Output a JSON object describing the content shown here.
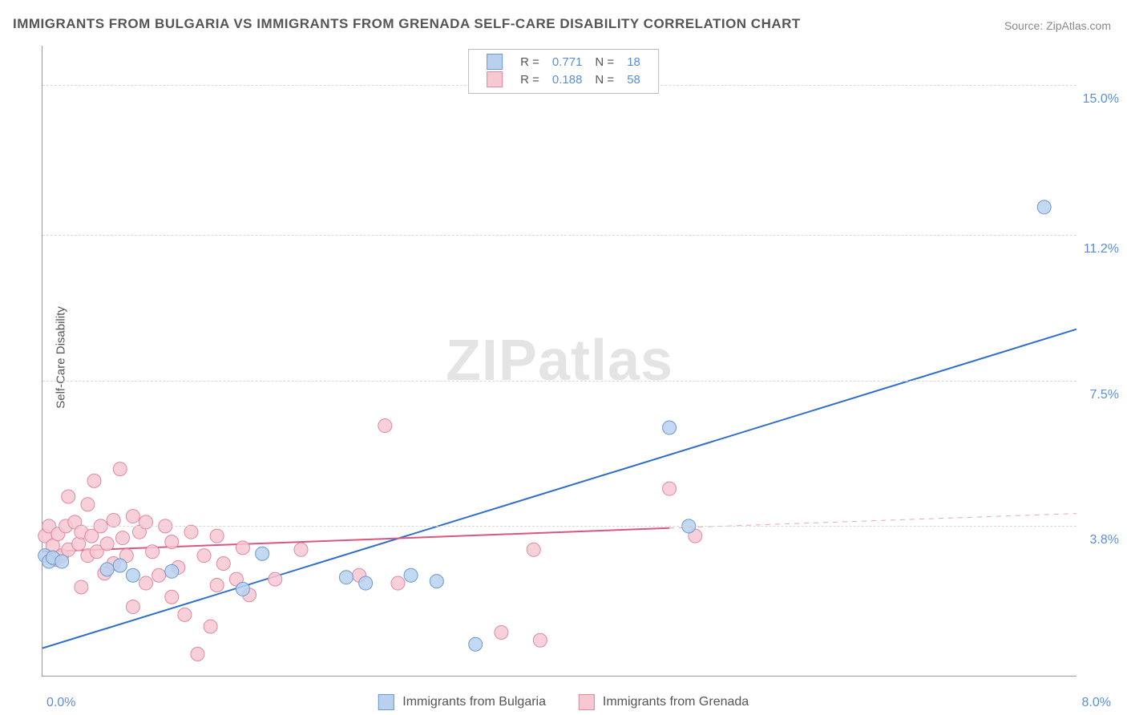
{
  "chart": {
    "type": "scatter-correlation",
    "title": "IMMIGRANTS FROM BULGARIA VS IMMIGRANTS FROM GRENADA SELF-CARE DISABILITY CORRELATION CHART",
    "source_label": "Source: ZipAtlas.com",
    "watermark": "ZIPatlas",
    "ylabel": "Self-Care Disability",
    "background_color": "#ffffff",
    "grid_color": "#d8d8d8",
    "axis_color": "#999999",
    "tick_text_color": "#5a8fd6",
    "xlim": [
      0.0,
      8.0
    ],
    "ylim": [
      0.0,
      16.0
    ],
    "ytick_values": [
      3.8,
      7.5,
      11.2,
      15.0
    ],
    "ytick_labels": [
      "3.8%",
      "7.5%",
      "11.2%",
      "15.0%"
    ],
    "xtick_min_label": "0.0%",
    "xtick_max_label": "8.0%",
    "point_radius": 8.5,
    "point_stroke_width": 1,
    "series": [
      {
        "key": "bulgaria",
        "label": "Immigrants from Bulgaria",
        "fill_color": "#b9d1ee",
        "stroke_color": "#6a99d0",
        "legend": {
          "R": "0.771",
          "N": "18"
        },
        "trend": {
          "x1": 0.0,
          "y1": 0.7,
          "x2": 8.0,
          "y2": 8.8,
          "color": "#2e6fc9",
          "width": 2
        },
        "points": [
          [
            0.02,
            3.05
          ],
          [
            0.05,
            2.9
          ],
          [
            0.08,
            3.0
          ],
          [
            0.15,
            2.9
          ],
          [
            0.5,
            2.7
          ],
          [
            0.6,
            2.8
          ],
          [
            0.7,
            2.55
          ],
          [
            1.0,
            2.65
          ],
          [
            1.55,
            2.2
          ],
          [
            1.7,
            3.1
          ],
          [
            2.35,
            2.5
          ],
          [
            2.5,
            2.35
          ],
          [
            2.85,
            2.55
          ],
          [
            3.05,
            2.4
          ],
          [
            3.35,
            0.8
          ],
          [
            4.85,
            6.3
          ],
          [
            5.0,
            3.8
          ],
          [
            7.75,
            11.9
          ]
        ]
      },
      {
        "key": "grenada",
        "label": "Immigrants from Grenada",
        "fill_color": "#f6c8d2",
        "stroke_color": "#e088a0",
        "legend": {
          "R": "0.188",
          "N": "58"
        },
        "trend": {
          "x1": 0.0,
          "y1": 3.15,
          "x2": 4.85,
          "y2": 3.75,
          "color": "#d9567e",
          "width": 2
        },
        "trend_ext": {
          "x1": 4.85,
          "y1": 3.75,
          "x2": 8.0,
          "y2": 4.12,
          "color": "#e7a7b9",
          "dash": "6,6",
          "width": 1
        },
        "points": [
          [
            0.02,
            3.55
          ],
          [
            0.05,
            3.8
          ],
          [
            0.08,
            3.3
          ],
          [
            0.1,
            2.95
          ],
          [
            0.12,
            3.6
          ],
          [
            0.15,
            3.05
          ],
          [
            0.18,
            3.8
          ],
          [
            0.2,
            4.55
          ],
          [
            0.2,
            3.2
          ],
          [
            0.25,
            3.9
          ],
          [
            0.28,
            3.35
          ],
          [
            0.3,
            2.25
          ],
          [
            0.3,
            3.65
          ],
          [
            0.35,
            4.35
          ],
          [
            0.35,
            3.05
          ],
          [
            0.38,
            3.55
          ],
          [
            0.4,
            4.95
          ],
          [
            0.42,
            3.15
          ],
          [
            0.45,
            3.8
          ],
          [
            0.48,
            2.6
          ],
          [
            0.5,
            3.35
          ],
          [
            0.55,
            3.95
          ],
          [
            0.55,
            2.85
          ],
          [
            0.6,
            5.25
          ],
          [
            0.62,
            3.5
          ],
          [
            0.65,
            3.05
          ],
          [
            0.7,
            4.05
          ],
          [
            0.7,
            1.75
          ],
          [
            0.75,
            3.65
          ],
          [
            0.8,
            2.35
          ],
          [
            0.8,
            3.9
          ],
          [
            0.85,
            3.15
          ],
          [
            0.9,
            2.55
          ],
          [
            0.95,
            3.8
          ],
          [
            1.0,
            2.0
          ],
          [
            1.0,
            3.4
          ],
          [
            1.05,
            2.75
          ],
          [
            1.1,
            1.55
          ],
          [
            1.15,
            3.65
          ],
          [
            1.2,
            0.55
          ],
          [
            1.25,
            3.05
          ],
          [
            1.3,
            1.25
          ],
          [
            1.35,
            2.3
          ],
          [
            1.35,
            3.55
          ],
          [
            1.4,
            2.85
          ],
          [
            1.5,
            2.45
          ],
          [
            1.55,
            3.25
          ],
          [
            1.6,
            2.05
          ],
          [
            1.8,
            2.45
          ],
          [
            2.0,
            3.2
          ],
          [
            2.45,
            2.55
          ],
          [
            2.65,
            6.35
          ],
          [
            2.75,
            2.35
          ],
          [
            3.55,
            1.1
          ],
          [
            3.8,
            3.2
          ],
          [
            3.85,
            0.9
          ],
          [
            4.85,
            4.75
          ],
          [
            5.05,
            3.55
          ]
        ]
      }
    ]
  }
}
